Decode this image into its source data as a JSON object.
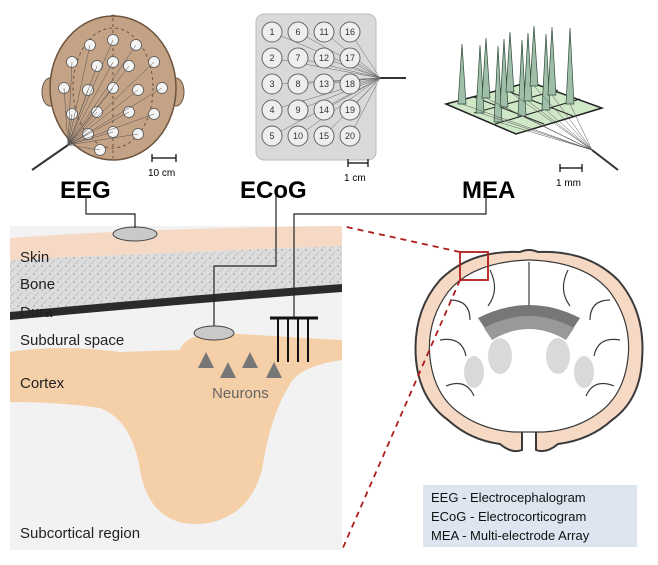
{
  "techniques": [
    {
      "name": "EEG",
      "scale": "10 cm"
    },
    {
      "name": "ECoG",
      "scale": "1 cm"
    },
    {
      "name": "MEA",
      "scale": "1 mm"
    }
  ],
  "ecog_grid_numbers": [
    "1",
    "2",
    "3",
    "4",
    "5",
    "6",
    "7",
    "8",
    "9",
    "10",
    "11",
    "12",
    "13",
    "14",
    "15",
    "16",
    "17",
    "18",
    "19",
    "20"
  ],
  "layers": {
    "skin": "Skin",
    "bone": "Bone",
    "dura": "Dura",
    "subdural": "Subdural space",
    "cortex": "Cortex",
    "neurons": "Neurons",
    "subcortical": "Subcortical region"
  },
  "legend": [
    "EEG - Electrocephalogram",
    "ECoG - Electrocorticogram",
    "MEA - Multi-electrode Array"
  ],
  "colors": {
    "scalp": "#c4a285",
    "skin": "#f6d9c4",
    "cortex": "#f4cfa8",
    "bone": "#dcdcdc",
    "dura": "#2b2b2b",
    "ecog_panel": "#d9d9d9",
    "mea_base": "#cfe8c8",
    "zoom_box": "#b01c1c",
    "legend_bg": "#dde6f0"
  }
}
